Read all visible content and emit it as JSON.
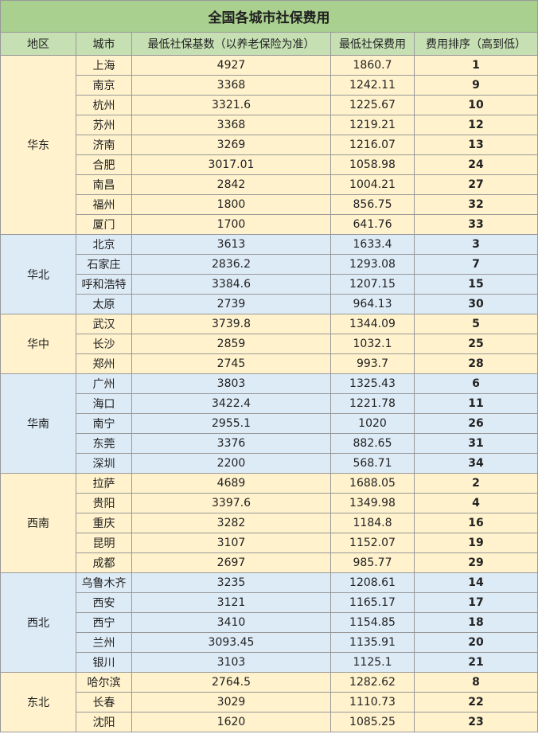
{
  "table": {
    "title": "全国各城市社保费用",
    "headers": [
      "地区",
      "城市",
      "最低社保基数（以养老保险为准）",
      "最低社保费用",
      "费用排序（高到低）"
    ],
    "groups": [
      {
        "region": "华东",
        "rows": [
          [
            "上海",
            4927,
            1860.7,
            1
          ],
          [
            "南京",
            3368,
            1242.11,
            9
          ],
          [
            "杭州",
            3321.6,
            1225.67,
            10
          ],
          [
            "苏州",
            3368,
            1219.21,
            12
          ],
          [
            "济南",
            3269,
            1216.07,
            13
          ],
          [
            "合肥",
            3017.01,
            1058.98,
            24
          ],
          [
            "南昌",
            2842,
            1004.21,
            27
          ],
          [
            "福州",
            1800,
            856.75,
            32
          ],
          [
            "厦门",
            1700,
            641.76,
            33
          ]
        ]
      },
      {
        "region": "华北",
        "rows": [
          [
            "北京",
            3613,
            1633.4,
            3
          ],
          [
            "石家庄",
            2836.2,
            1293.08,
            7
          ],
          [
            "呼和浩特",
            3384.6,
            1207.15,
            15
          ],
          [
            "太原",
            2739,
            964.13,
            30
          ]
        ]
      },
      {
        "region": "华中",
        "rows": [
          [
            "武汉",
            3739.8,
            1344.09,
            5
          ],
          [
            "长沙",
            2859,
            1032.1,
            25
          ],
          [
            "郑州",
            2745,
            993.7,
            28
          ]
        ]
      },
      {
        "region": "华南",
        "rows": [
          [
            "广州",
            3803,
            1325.43,
            6
          ],
          [
            "海口",
            3422.4,
            1221.78,
            11
          ],
          [
            "南宁",
            2955.1,
            1020,
            26
          ],
          [
            "东莞",
            3376,
            882.65,
            31
          ],
          [
            "深圳",
            2200,
            568.71,
            34
          ]
        ]
      },
      {
        "region": "西南",
        "rows": [
          [
            "拉萨",
            4689,
            1688.05,
            2
          ],
          [
            "贵阳",
            3397.6,
            1349.98,
            4
          ],
          [
            "重庆",
            3282,
            1184.8,
            16
          ],
          [
            "昆明",
            3107,
            1152.07,
            19
          ],
          [
            "成都",
            2697,
            985.77,
            29
          ]
        ]
      },
      {
        "region": "西北",
        "rows": [
          [
            "乌鲁木齐",
            3235,
            1208.61,
            14
          ],
          [
            "西安",
            3121,
            1165.17,
            17
          ],
          [
            "西宁",
            3410,
            1154.85,
            18
          ],
          [
            "兰州",
            3093.45,
            1135.91,
            20
          ],
          [
            "银川",
            3103,
            1125.1,
            21
          ]
        ]
      },
      {
        "region": "东北",
        "rows": [
          [
            "哈尔滨",
            2764.5,
            1282.62,
            8
          ],
          [
            "长春",
            3029,
            1110.73,
            22
          ],
          [
            "沈阳",
            1620,
            1085.25,
            23
          ]
        ]
      }
    ]
  }
}
